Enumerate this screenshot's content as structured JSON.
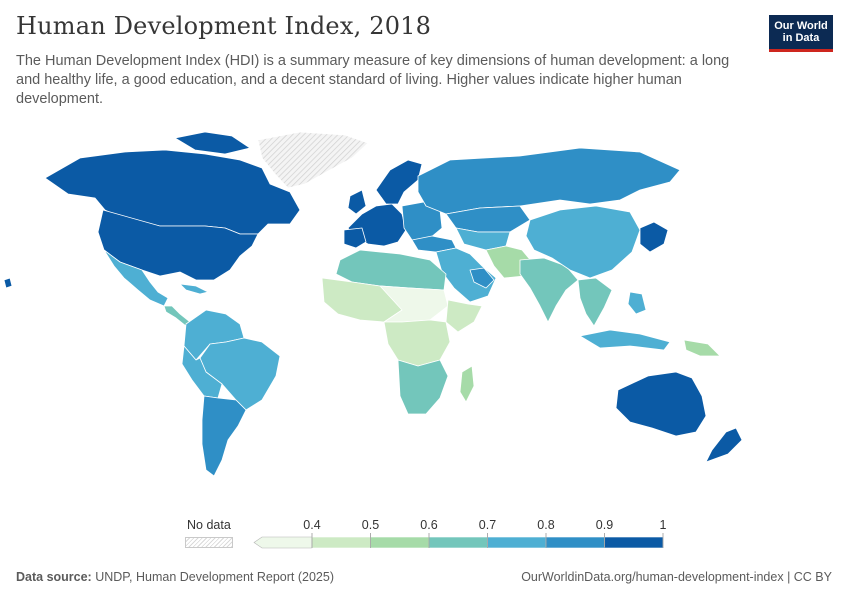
{
  "header": {
    "title": "Human Development Index, 2018",
    "subtitle": "The Human Development Index (HDI) is a summary measure of key dimensions of human development: a long and healthy life, a good education, and a decent standard of living. Higher values indicate higher human development."
  },
  "logo": {
    "line1": "Our World",
    "line2": "in Data"
  },
  "legend": {
    "no_data_label": "No data",
    "ticks": [
      "0.4",
      "0.5",
      "0.6",
      "0.7",
      "0.8",
      "0.9",
      "1"
    ],
    "colors": [
      "#eef8ea",
      "#cdeac4",
      "#a6dba8",
      "#73c6bb",
      "#4eafd3",
      "#2f8fc6",
      "#0b5aa5"
    ]
  },
  "footer": {
    "source_label": "Data source:",
    "source_text": "UNDP, Human Development Report (2025)",
    "url": "OurWorldinData.org/human-development-index | CC BY"
  },
  "map_data": {
    "colors": {
      "very_high": "#0b5aa5",
      "high_plus": "#2f8fc6",
      "high": "#4eafd3",
      "medium": "#73c6bb",
      "low_plus": "#a6dba8",
      "low": "#cdeac4",
      "very_low": "#eef8ea",
      "no_data": "#e6e6e6",
      "border": "#ffffff"
    }
  }
}
